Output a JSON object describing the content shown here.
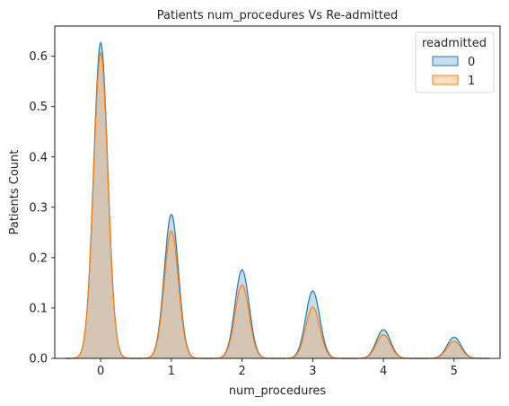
{
  "chart_data": {
    "type": "area",
    "title": "Patients num_procedures Vs Re-admitted",
    "xlabel": "num_procedures",
    "ylabel": "Patients Count",
    "xlim": [
      -0.65,
      5.65
    ],
    "ylim": [
      0,
      0.66
    ],
    "xticks": [
      "0",
      "1",
      "2",
      "3",
      "4",
      "5"
    ],
    "yticks": [
      "0.0",
      "0.1",
      "0.2",
      "0.3",
      "0.4",
      "0.5",
      "0.6"
    ],
    "grid": false,
    "legend": {
      "title": "readmitted",
      "placement": "top-right"
    },
    "series": [
      {
        "name": "0",
        "color": "#1f77b4",
        "x": [
          0,
          1,
          2,
          3,
          4,
          5
        ],
        "peaks": [
          0.627,
          0.286,
          0.176,
          0.134,
          0.057,
          0.042
        ]
      },
      {
        "name": "1",
        "color": "#ff7f0e",
        "x": [
          0,
          1,
          2,
          3,
          4,
          5
        ],
        "peaks": [
          0.607,
          0.253,
          0.146,
          0.102,
          0.047,
          0.034
        ]
      }
    ],
    "kde_range": [
      -0.5,
      5.5
    ]
  }
}
